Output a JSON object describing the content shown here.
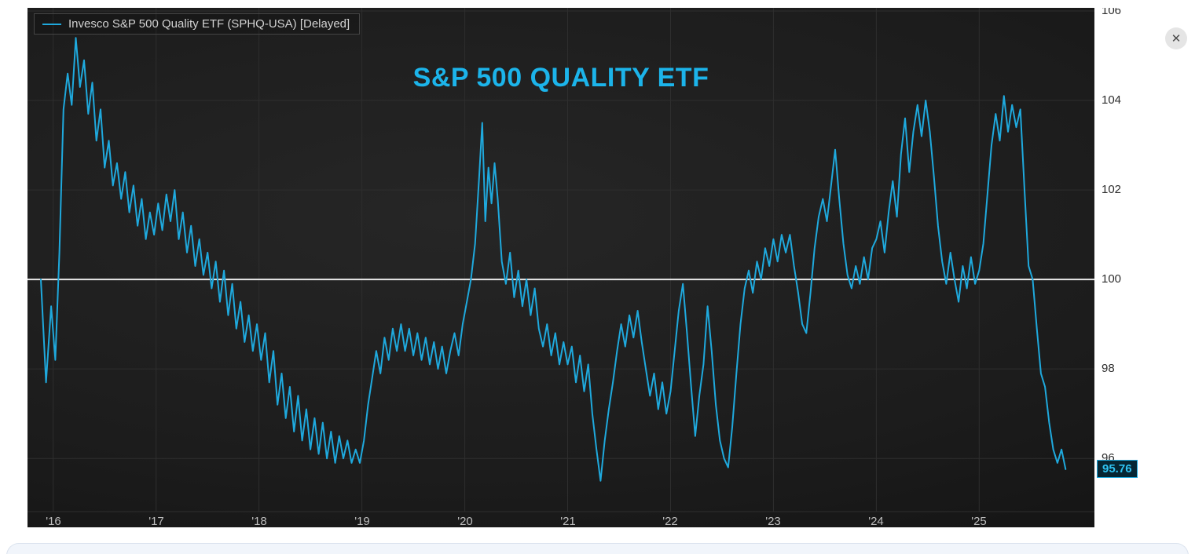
{
  "controls": {
    "close_icon": "✕"
  },
  "colors": {
    "accent": "#1fa9dd",
    "title": "#1cb4ea",
    "reference_line": "#e8e8e8",
    "grid_line": "#2e2e2e",
    "panel_bg": "#1b1b1b",
    "badge_bg": "#062633",
    "badge_border": "#1fa9dd"
  },
  "chart_data": {
    "type": "line",
    "title": "S&P 500 QUALITY ETF",
    "legend_position": "top-left",
    "grid": true,
    "legend": [
      {
        "label": "Invesco S&P 500 Quality ETF (SPHQ-USA) [Delayed]",
        "color": "#1fa9dd"
      }
    ],
    "x_ticks": [
      "'16",
      "'17",
      "'18",
      "'19",
      "'20",
      "'21",
      "'22",
      "'23",
      "'24",
      "'25"
    ],
    "x_tick_years": [
      2016,
      2017,
      2018,
      2019,
      2020,
      2021,
      2022,
      2023,
      2024,
      2025
    ],
    "y_ticks": [
      106,
      104,
      102,
      100,
      98,
      96
    ],
    "xlim": [
      2015.75,
      2026.12
    ],
    "ylim": [
      94.46,
      106.07
    ],
    "reference_line": 100,
    "last_price": "95.76",
    "series": [
      {
        "name": "Invesco S&P 500 Quality ETF (SPHQ-USA) [Delayed]",
        "color": "#1fa9dd",
        "points": [
          [
            2015.88,
            100.0
          ],
          [
            2015.93,
            97.7
          ],
          [
            2015.98,
            99.4
          ],
          [
            2016.02,
            98.2
          ],
          [
            2016.06,
            100.6
          ],
          [
            2016.1,
            103.8
          ],
          [
            2016.14,
            104.6
          ],
          [
            2016.18,
            103.9
          ],
          [
            2016.22,
            105.4
          ],
          [
            2016.26,
            104.3
          ],
          [
            2016.3,
            104.9
          ],
          [
            2016.34,
            103.7
          ],
          [
            2016.38,
            104.4
          ],
          [
            2016.42,
            103.1
          ],
          [
            2016.46,
            103.8
          ],
          [
            2016.5,
            102.5
          ],
          [
            2016.54,
            103.1
          ],
          [
            2016.58,
            102.1
          ],
          [
            2016.62,
            102.6
          ],
          [
            2016.66,
            101.8
          ],
          [
            2016.7,
            102.4
          ],
          [
            2016.74,
            101.5
          ],
          [
            2016.78,
            102.1
          ],
          [
            2016.82,
            101.2
          ],
          [
            2016.86,
            101.8
          ],
          [
            2016.9,
            100.9
          ],
          [
            2016.94,
            101.5
          ],
          [
            2016.98,
            101.0
          ],
          [
            2017.02,
            101.7
          ],
          [
            2017.06,
            101.1
          ],
          [
            2017.1,
            101.9
          ],
          [
            2017.14,
            101.3
          ],
          [
            2017.18,
            102.0
          ],
          [
            2017.22,
            100.9
          ],
          [
            2017.26,
            101.5
          ],
          [
            2017.3,
            100.6
          ],
          [
            2017.34,
            101.2
          ],
          [
            2017.38,
            100.3
          ],
          [
            2017.42,
            100.9
          ],
          [
            2017.46,
            100.1
          ],
          [
            2017.5,
            100.6
          ],
          [
            2017.54,
            99.8
          ],
          [
            2017.58,
            100.4
          ],
          [
            2017.62,
            99.5
          ],
          [
            2017.66,
            100.2
          ],
          [
            2017.7,
            99.2
          ],
          [
            2017.74,
            99.9
          ],
          [
            2017.78,
            98.9
          ],
          [
            2017.82,
            99.5
          ],
          [
            2017.86,
            98.6
          ],
          [
            2017.9,
            99.2
          ],
          [
            2017.94,
            98.4
          ],
          [
            2017.98,
            99.0
          ],
          [
            2018.02,
            98.2
          ],
          [
            2018.06,
            98.8
          ],
          [
            2018.1,
            97.7
          ],
          [
            2018.14,
            98.4
          ],
          [
            2018.18,
            97.2
          ],
          [
            2018.22,
            97.9
          ],
          [
            2018.26,
            96.9
          ],
          [
            2018.3,
            97.6
          ],
          [
            2018.34,
            96.6
          ],
          [
            2018.38,
            97.4
          ],
          [
            2018.42,
            96.4
          ],
          [
            2018.46,
            97.1
          ],
          [
            2018.5,
            96.2
          ],
          [
            2018.54,
            96.9
          ],
          [
            2018.58,
            96.1
          ],
          [
            2018.62,
            96.8
          ],
          [
            2018.66,
            96.0
          ],
          [
            2018.7,
            96.6
          ],
          [
            2018.74,
            95.9
          ],
          [
            2018.78,
            96.5
          ],
          [
            2018.82,
            96.0
          ],
          [
            2018.86,
            96.4
          ],
          [
            2018.9,
            95.9
          ],
          [
            2018.94,
            96.2
          ],
          [
            2018.98,
            95.9
          ],
          [
            2019.02,
            96.4
          ],
          [
            2019.06,
            97.2
          ],
          [
            2019.1,
            97.8
          ],
          [
            2019.14,
            98.4
          ],
          [
            2019.18,
            97.9
          ],
          [
            2019.22,
            98.7
          ],
          [
            2019.26,
            98.2
          ],
          [
            2019.3,
            98.9
          ],
          [
            2019.34,
            98.4
          ],
          [
            2019.38,
            99.0
          ],
          [
            2019.42,
            98.4
          ],
          [
            2019.46,
            98.9
          ],
          [
            2019.5,
            98.3
          ],
          [
            2019.54,
            98.8
          ],
          [
            2019.58,
            98.2
          ],
          [
            2019.62,
            98.7
          ],
          [
            2019.66,
            98.1
          ],
          [
            2019.7,
            98.6
          ],
          [
            2019.74,
            98.0
          ],
          [
            2019.78,
            98.5
          ],
          [
            2019.82,
            97.9
          ],
          [
            2019.86,
            98.4
          ],
          [
            2019.9,
            98.8
          ],
          [
            2019.94,
            98.3
          ],
          [
            2019.98,
            99.0
          ],
          [
            2020.02,
            99.5
          ],
          [
            2020.06,
            100.0
          ],
          [
            2020.1,
            100.8
          ],
          [
            2020.14,
            102.3
          ],
          [
            2020.17,
            103.5
          ],
          [
            2020.2,
            101.3
          ],
          [
            2020.23,
            102.5
          ],
          [
            2020.26,
            101.7
          ],
          [
            2020.29,
            102.6
          ],
          [
            2020.32,
            101.8
          ],
          [
            2020.36,
            100.4
          ],
          [
            2020.4,
            99.9
          ],
          [
            2020.44,
            100.6
          ],
          [
            2020.48,
            99.6
          ],
          [
            2020.52,
            100.2
          ],
          [
            2020.56,
            99.4
          ],
          [
            2020.6,
            100.0
          ],
          [
            2020.64,
            99.2
          ],
          [
            2020.68,
            99.8
          ],
          [
            2020.72,
            98.9
          ],
          [
            2020.76,
            98.5
          ],
          [
            2020.8,
            99.0
          ],
          [
            2020.84,
            98.3
          ],
          [
            2020.88,
            98.8
          ],
          [
            2020.92,
            98.1
          ],
          [
            2020.96,
            98.6
          ],
          [
            2021.0,
            98.1
          ],
          [
            2021.04,
            98.5
          ],
          [
            2021.08,
            97.7
          ],
          [
            2021.12,
            98.3
          ],
          [
            2021.16,
            97.5
          ],
          [
            2021.2,
            98.1
          ],
          [
            2021.24,
            97.0
          ],
          [
            2021.28,
            96.2
          ],
          [
            2021.32,
            95.5
          ],
          [
            2021.36,
            96.4
          ],
          [
            2021.4,
            97.1
          ],
          [
            2021.44,
            97.7
          ],
          [
            2021.48,
            98.4
          ],
          [
            2021.52,
            99.0
          ],
          [
            2021.56,
            98.5
          ],
          [
            2021.6,
            99.2
          ],
          [
            2021.64,
            98.7
          ],
          [
            2021.68,
            99.3
          ],
          [
            2021.72,
            98.6
          ],
          [
            2021.76,
            98.0
          ],
          [
            2021.8,
            97.4
          ],
          [
            2021.84,
            97.9
          ],
          [
            2021.88,
            97.1
          ],
          [
            2021.92,
            97.7
          ],
          [
            2021.96,
            97.0
          ],
          [
            2022.0,
            97.5
          ],
          [
            2022.04,
            98.4
          ],
          [
            2022.08,
            99.3
          ],
          [
            2022.12,
            99.9
          ],
          [
            2022.16,
            98.8
          ],
          [
            2022.2,
            97.6
          ],
          [
            2022.24,
            96.5
          ],
          [
            2022.28,
            97.4
          ],
          [
            2022.32,
            98.1
          ],
          [
            2022.36,
            99.4
          ],
          [
            2022.4,
            98.4
          ],
          [
            2022.44,
            97.2
          ],
          [
            2022.48,
            96.4
          ],
          [
            2022.52,
            96.0
          ],
          [
            2022.56,
            95.8
          ],
          [
            2022.6,
            96.7
          ],
          [
            2022.64,
            97.9
          ],
          [
            2022.68,
            99.0
          ],
          [
            2022.72,
            99.8
          ],
          [
            2022.76,
            100.2
          ],
          [
            2022.8,
            99.7
          ],
          [
            2022.84,
            100.4
          ],
          [
            2022.88,
            100.0
          ],
          [
            2022.92,
            100.7
          ],
          [
            2022.96,
            100.3
          ],
          [
            2023.0,
            100.9
          ],
          [
            2023.04,
            100.4
          ],
          [
            2023.08,
            101.0
          ],
          [
            2023.12,
            100.6
          ],
          [
            2023.16,
            101.0
          ],
          [
            2023.2,
            100.3
          ],
          [
            2023.24,
            99.7
          ],
          [
            2023.28,
            99.0
          ],
          [
            2023.32,
            98.8
          ],
          [
            2023.36,
            99.7
          ],
          [
            2023.4,
            100.7
          ],
          [
            2023.44,
            101.4
          ],
          [
            2023.48,
            101.8
          ],
          [
            2023.52,
            101.3
          ],
          [
            2023.56,
            102.1
          ],
          [
            2023.6,
            102.9
          ],
          [
            2023.64,
            101.8
          ],
          [
            2023.68,
            100.8
          ],
          [
            2023.72,
            100.1
          ],
          [
            2023.76,
            99.8
          ],
          [
            2023.8,
            100.3
          ],
          [
            2023.84,
            99.9
          ],
          [
            2023.88,
            100.5
          ],
          [
            2023.92,
            100.0
          ],
          [
            2023.96,
            100.7
          ],
          [
            2024.0,
            100.9
          ],
          [
            2024.04,
            101.3
          ],
          [
            2024.08,
            100.6
          ],
          [
            2024.12,
            101.5
          ],
          [
            2024.16,
            102.2
          ],
          [
            2024.2,
            101.4
          ],
          [
            2024.24,
            102.8
          ],
          [
            2024.28,
            103.6
          ],
          [
            2024.32,
            102.4
          ],
          [
            2024.36,
            103.3
          ],
          [
            2024.4,
            103.9
          ],
          [
            2024.44,
            103.2
          ],
          [
            2024.48,
            104.0
          ],
          [
            2024.52,
            103.3
          ],
          [
            2024.56,
            102.3
          ],
          [
            2024.6,
            101.2
          ],
          [
            2024.64,
            100.4
          ],
          [
            2024.68,
            99.9
          ],
          [
            2024.72,
            100.6
          ],
          [
            2024.76,
            100.0
          ],
          [
            2024.8,
            99.5
          ],
          [
            2024.84,
            100.3
          ],
          [
            2024.88,
            99.8
          ],
          [
            2024.92,
            100.5
          ],
          [
            2024.96,
            99.9
          ],
          [
            2025.0,
            100.2
          ],
          [
            2025.04,
            100.8
          ],
          [
            2025.08,
            101.9
          ],
          [
            2025.12,
            103.0
          ],
          [
            2025.16,
            103.7
          ],
          [
            2025.2,
            103.1
          ],
          [
            2025.24,
            104.1
          ],
          [
            2025.28,
            103.3
          ],
          [
            2025.32,
            103.9
          ],
          [
            2025.36,
            103.4
          ],
          [
            2025.4,
            103.8
          ],
          [
            2025.44,
            102.0
          ],
          [
            2025.48,
            100.3
          ],
          [
            2025.52,
            100.0
          ],
          [
            2025.56,
            98.9
          ],
          [
            2025.6,
            97.9
          ],
          [
            2025.64,
            97.6
          ],
          [
            2025.68,
            96.8
          ],
          [
            2025.72,
            96.2
          ],
          [
            2025.76,
            95.9
          ],
          [
            2025.8,
            96.2
          ],
          [
            2025.84,
            95.76
          ]
        ]
      }
    ]
  }
}
